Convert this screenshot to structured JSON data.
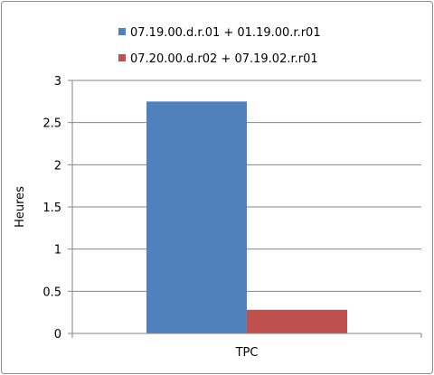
{
  "chart_data": {
    "type": "bar",
    "title": "",
    "xlabel": "",
    "ylabel": "Heures",
    "categories": [
      "TPC"
    ],
    "series": [
      {
        "name": "07.19.00.d.r.01 + 01.19.00.r.r01",
        "values": [
          2.75
        ],
        "color": "#4f81bd"
      },
      {
        "name": "07.20.00.d.r02 + 07.19.02.r.r01",
        "values": [
          0.28
        ],
        "color": "#c0504d"
      }
    ],
    "ylim": [
      0,
      3
    ],
    "yticks": [
      "0",
      "0.5",
      "1",
      "1.5",
      "2",
      "2.5",
      "3"
    ],
    "grid": true,
    "legend_position": "top"
  }
}
